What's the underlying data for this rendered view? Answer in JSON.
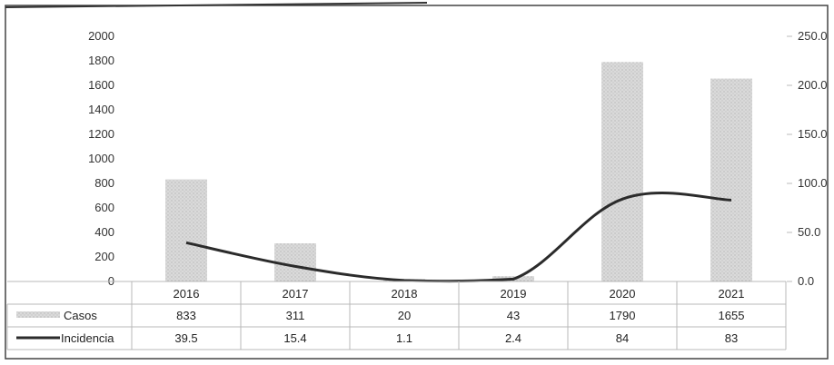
{
  "chart_data": {
    "type": "bar",
    "categories": [
      "2016",
      "2017",
      "2018",
      "2019",
      "2020",
      "2021"
    ],
    "series": [
      {
        "name": "Casos",
        "type": "bar",
        "axis": "left",
        "values": [
          833,
          311,
          20,
          43,
          1790,
          1655
        ],
        "labels": [
          "833",
          "311",
          "20",
          "43",
          "1790",
          "1655"
        ]
      },
      {
        "name": "Incidencia",
        "type": "line",
        "axis": "right",
        "values": [
          39.5,
          15.4,
          1.1,
          2.4,
          84,
          83
        ],
        "labels": [
          "39.5",
          "15.4",
          "1.1",
          "2.4",
          "84",
          "83"
        ]
      }
    ],
    "y_left": {
      "min": 0,
      "max": 2000,
      "ticks": [
        "0",
        "200",
        "400",
        "600",
        "800",
        "1000",
        "1200",
        "1400",
        "1600",
        "1800",
        "2000"
      ]
    },
    "y_right": {
      "min": 0,
      "max": 250,
      "ticks": [
        "0.0",
        "50.0",
        "100.0",
        "150.0",
        "200.0",
        "250.0"
      ]
    },
    "legend": "data-table",
    "grid": false,
    "title": "",
    "xlabel": "",
    "ylabel": ""
  },
  "colors": {
    "bar": "#d2d2d2",
    "line": "#2b2b2b",
    "border": "#444444",
    "table_grid": "#b8b8b8"
  }
}
